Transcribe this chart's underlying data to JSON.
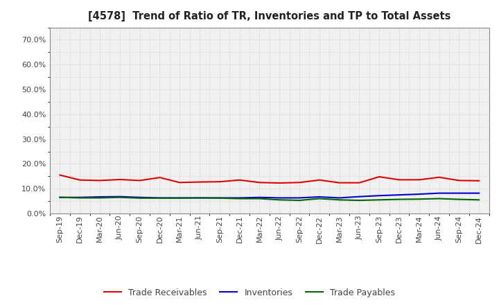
{
  "title": "[4578]  Trend of Ratio of TR, Inventories and TP to Total Assets",
  "x_labels": [
    "Sep-19",
    "Dec-19",
    "Mar-20",
    "Jun-20",
    "Sep-20",
    "Dec-20",
    "Mar-21",
    "Jun-21",
    "Sep-21",
    "Dec-21",
    "Mar-22",
    "Jun-22",
    "Sep-22",
    "Dec-22",
    "Mar-23",
    "Jun-23",
    "Sep-23",
    "Dec-23",
    "Mar-24",
    "Jun-24",
    "Sep-24",
    "Dec-24"
  ],
  "trade_receivables": [
    0.155,
    0.135,
    0.133,
    0.137,
    0.133,
    0.145,
    0.125,
    0.127,
    0.128,
    0.135,
    0.125,
    0.123,
    0.125,
    0.135,
    0.124,
    0.124,
    0.148,
    0.136,
    0.136,
    0.146,
    0.133,
    0.132
  ],
  "inventories": [
    0.065,
    0.065,
    0.067,
    0.068,
    0.065,
    0.063,
    0.063,
    0.063,
    0.063,
    0.063,
    0.065,
    0.063,
    0.063,
    0.067,
    0.063,
    0.068,
    0.072,
    0.075,
    0.078,
    0.082,
    0.082,
    0.082
  ],
  "trade_payables": [
    0.065,
    0.063,
    0.063,
    0.065,
    0.062,
    0.062,
    0.062,
    0.063,
    0.062,
    0.06,
    0.06,
    0.055,
    0.053,
    0.06,
    0.055,
    0.053,
    0.055,
    0.057,
    0.058,
    0.06,
    0.057,
    0.055
  ],
  "tr_color": "#e00000",
  "inv_color": "#0000cc",
  "tp_color": "#006600",
  "ylim": [
    0.0,
    0.75
  ],
  "yticks": [
    0.0,
    0.1,
    0.2,
    0.3,
    0.4,
    0.5,
    0.6,
    0.7
  ],
  "bg_color": "#ffffff",
  "plot_bg_color": "#f0f0f0",
  "grid_color": "#bbbbbb",
  "legend_labels": [
    "Trade Receivables",
    "Inventories",
    "Trade Payables"
  ],
  "linewidth": 1.5,
  "title_fontsize": 10.5,
  "tick_fontsize": 8,
  "legend_fontsize": 9
}
